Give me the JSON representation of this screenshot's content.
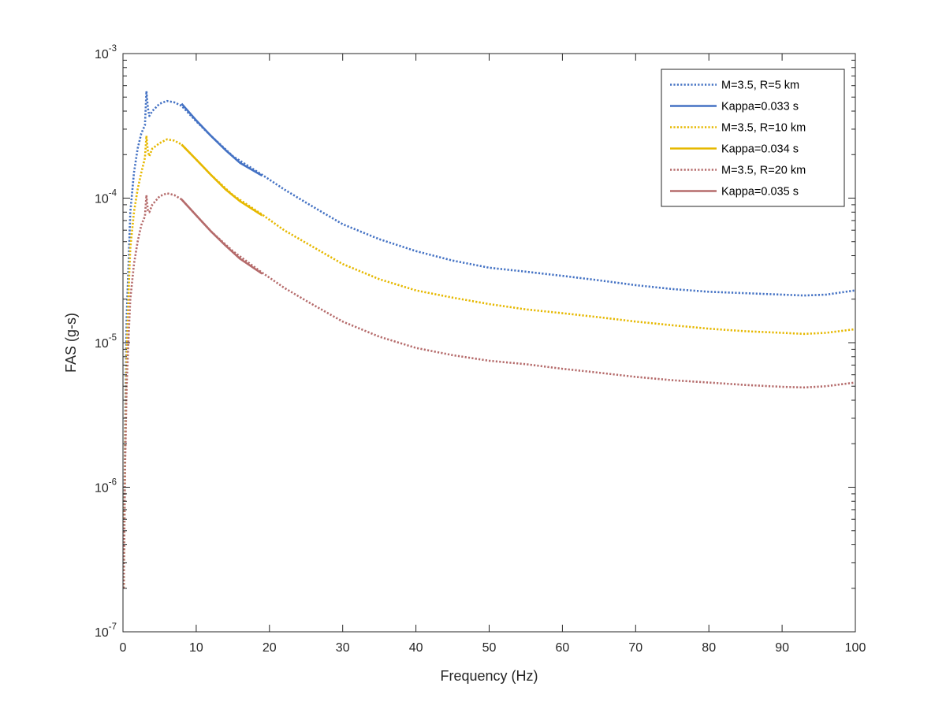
{
  "chart_data": {
    "type": "line",
    "title": "",
    "xlabel": "Frequency (Hz)",
    "ylabel": "FAS (g-s)",
    "xlim": [
      0,
      100
    ],
    "ylim": [
      1e-07,
      0.001
    ],
    "yscale": "log",
    "grid": false,
    "legend_position": "top-right",
    "x_ticks": [
      0,
      10,
      20,
      30,
      40,
      50,
      60,
      70,
      80,
      90,
      100
    ],
    "x_tick_labels": [
      "0",
      "10",
      "20",
      "30",
      "40",
      "50",
      "60",
      "70",
      "80",
      "90",
      "100"
    ],
    "y_ticks": [
      {
        "value": 1e-07,
        "base": "10",
        "exp": "-7"
      },
      {
        "value": 1e-06,
        "base": "10",
        "exp": "-6"
      },
      {
        "value": 1e-05,
        "base": "10",
        "exp": "-5"
      },
      {
        "value": 0.0001,
        "base": "10",
        "exp": "-4"
      },
      {
        "value": 0.001,
        "base": "10",
        "exp": "-3"
      }
    ],
    "series": [
      {
        "name": "M=3.5, R=5 km",
        "color": "#4472C4",
        "style": "dotted",
        "x": [
          0.1,
          0.3,
          0.5,
          0.8,
          1.0,
          1.5,
          2.0,
          2.5,
          3.0,
          3.2,
          3.4,
          3.6,
          4.0,
          5.0,
          6.0,
          7.0,
          8.0,
          10,
          12,
          15,
          19,
          22,
          25,
          30,
          35,
          40,
          45,
          50,
          55,
          60,
          65,
          70,
          75,
          80,
          85,
          90,
          93,
          96,
          100
        ],
        "y": [
          2e-07,
          3e-06,
          1.5e-05,
          4e-05,
          8e-05,
          0.00015,
          0.00022,
          0.00028,
          0.00032,
          0.00055,
          0.00042,
          0.00037,
          0.0004,
          0.00045,
          0.00047,
          0.00046,
          0.000435,
          0.00034,
          0.00027,
          0.000195,
          0.000145,
          0.000115,
          9.3e-05,
          6.6e-05,
          5.2e-05,
          4.3e-05,
          3.7e-05,
          3.3e-05,
          3.1e-05,
          2.9e-05,
          2.7e-05,
          2.5e-05,
          2.35e-05,
          2.25e-05,
          2.2e-05,
          2.15e-05,
          2.12e-05,
          2.15e-05,
          2.3e-05
        ]
      },
      {
        "name": "Kappa=0.033 s",
        "color": "#4472C4",
        "style": "solid",
        "x": [
          8,
          10,
          12,
          14,
          16,
          19
        ],
        "y": [
          0.00045,
          0.000345,
          0.00027,
          0.000215,
          0.000175,
          0.000143
        ]
      },
      {
        "name": "M=3.5, R=10 km",
        "color": "#E6B800",
        "style": "dotted",
        "x": [
          0.1,
          0.3,
          0.5,
          0.8,
          1.0,
          1.5,
          2.0,
          2.5,
          3.0,
          3.2,
          3.4,
          3.6,
          4.0,
          5.0,
          6.0,
          7.0,
          8.0,
          10,
          12,
          15,
          19,
          22,
          25,
          30,
          35,
          40,
          45,
          50,
          55,
          60,
          65,
          70,
          75,
          80,
          85,
          90,
          93,
          96,
          100
        ],
        "y": [
          2e-07,
          2e-06,
          8e-06,
          2.5e-05,
          4.5e-05,
          8e-05,
          0.000115,
          0.00015,
          0.00019,
          0.00027,
          0.00021,
          0.000195,
          0.00022,
          0.00024,
          0.000255,
          0.00025,
          0.000235,
          0.000185,
          0.000145,
          0.000105,
          7.7e-05,
          6e-05,
          4.9e-05,
          3.5e-05,
          2.75e-05,
          2.3e-05,
          2.05e-05,
          1.85e-05,
          1.7e-05,
          1.6e-05,
          1.5e-05,
          1.4e-05,
          1.32e-05,
          1.25e-05,
          1.2e-05,
          1.17e-05,
          1.15e-05,
          1.17e-05,
          1.24e-05
        ]
      },
      {
        "name": "Kappa=0.034 s",
        "color": "#E6B800",
        "style": "solid",
        "x": [
          8,
          10,
          12,
          14,
          16,
          19
        ],
        "y": [
          0.000235,
          0.000185,
          0.000145,
          0.000115,
          9.5e-05,
          7.6e-05
        ]
      },
      {
        "name": "M=3.5, R=20 km",
        "color": "#B56B6B",
        "style": "dotted",
        "x": [
          0.1,
          0.3,
          0.5,
          0.8,
          1.0,
          1.5,
          2.0,
          2.5,
          3.0,
          3.2,
          3.4,
          3.6,
          4.0,
          5.0,
          6.0,
          7.0,
          8.0,
          10,
          12,
          15,
          19,
          22,
          25,
          30,
          35,
          40,
          45,
          50,
          55,
          60,
          65,
          70,
          75,
          80,
          85,
          90,
          93,
          96,
          100
        ],
        "y": [
          2e-07,
          1.5e-06,
          5e-06,
          1.2e-05,
          2e-05,
          3.5e-05,
          5e-05,
          6.5e-05,
          7.5e-05,
          0.000105,
          8.2e-05,
          8e-05,
          9e-05,
          0.000103,
          0.000108,
          0.000105,
          9.8e-05,
          7.6e-05,
          5.9e-05,
          4.3e-05,
          3.05e-05,
          2.4e-05,
          1.95e-05,
          1.4e-05,
          1.1e-05,
          9.2e-06,
          8.2e-06,
          7.5e-06,
          7.1e-06,
          6.6e-06,
          6.2e-06,
          5.8e-06,
          5.5e-06,
          5.3e-06,
          5.1e-06,
          4.95e-06,
          4.9e-06,
          5e-06,
          5.3e-06
        ]
      },
      {
        "name": "Kappa=0.035 s",
        "color": "#B56B6B",
        "style": "solid",
        "x": [
          8,
          10,
          12,
          14,
          16,
          19
        ],
        "y": [
          9.8e-05,
          7.6e-05,
          5.9e-05,
          4.7e-05,
          3.8e-05,
          3e-05
        ]
      }
    ]
  }
}
